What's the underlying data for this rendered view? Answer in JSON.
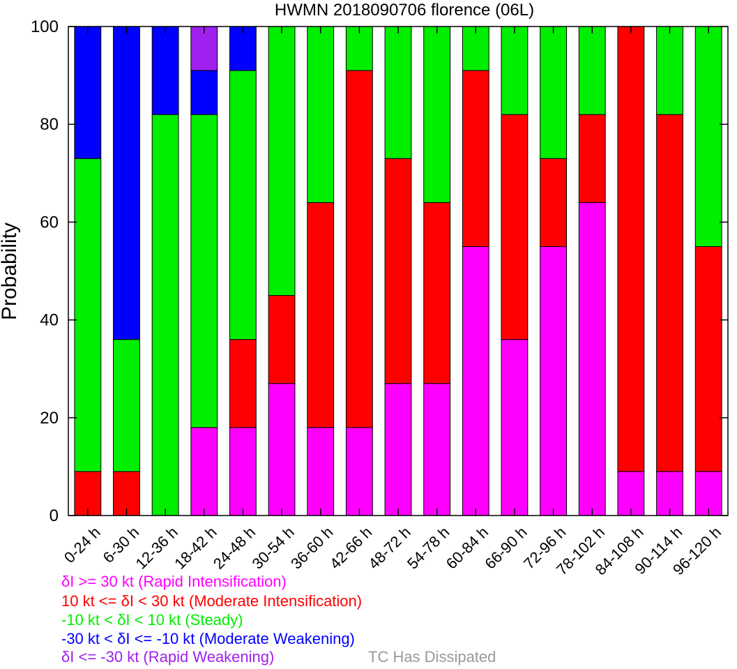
{
  "chart_data": {
    "type": "bar",
    "stacked": true,
    "title": "HWMN 2018090706 florence (06L)",
    "xlabel": "",
    "ylabel": "Probability",
    "ylim": [
      0,
      100
    ],
    "yticks": [
      0,
      20,
      40,
      60,
      80,
      100
    ],
    "grid": false,
    "categories": [
      "0-24 h",
      "6-30 h",
      "12-36 h",
      "18-42 h",
      "24-48 h",
      "30-54 h",
      "36-60 h",
      "42-66 h",
      "48-72 h",
      "54-78 h",
      "60-84 h",
      "66-90 h",
      "72-96 h",
      "78-102 h",
      "84-108 h",
      "90-114 h",
      "96-120 h"
    ],
    "series": [
      {
        "color": "#ff00ff",
        "values": [
          0,
          0,
          0,
          18,
          18,
          27,
          18,
          18,
          27,
          27,
          55,
          36,
          55,
          64,
          9,
          9,
          9
        ]
      },
      {
        "color": "#ff0000",
        "values": [
          9,
          9,
          0,
          0,
          18,
          18,
          46,
          73,
          46,
          37,
          36,
          46,
          18,
          18,
          91,
          73,
          46
        ]
      },
      {
        "color": "#00ee00",
        "values": [
          64,
          27,
          82,
          64,
          55,
          55,
          36,
          9,
          27,
          36,
          9,
          18,
          27,
          18,
          0,
          18,
          45
        ]
      },
      {
        "color": "#0000ff",
        "values": [
          27,
          64,
          18,
          9,
          9,
          0,
          0,
          0,
          0,
          0,
          0,
          0,
          0,
          0,
          0,
          0,
          0
        ]
      },
      {
        "color": "#a020f0",
        "values": [
          0,
          0,
          0,
          9,
          0,
          0,
          0,
          0,
          0,
          0,
          0,
          0,
          0,
          0,
          0,
          0,
          0
        ]
      }
    ]
  },
  "legend": {
    "rapid_intensification": {
      "prefix": "δ",
      "text": "I >= 30 kt (Rapid Intensification)",
      "color": "#ff00ff"
    },
    "moderate_intensification": {
      "prefix": "10 kt <= ",
      "delta": "δ",
      "text": "I < 30 kt (Moderate Intensification)",
      "color": "#ff0000"
    },
    "steady": {
      "prefix": "-10 kt < ",
      "delta": "δ",
      "text": "I < 10 kt (Steady)",
      "color": "#00ee00"
    },
    "moderate_weakening": {
      "prefix": "-30 kt < ",
      "delta": "δ",
      "text": "I <= -10 kt (Moderate Weakening)",
      "color": "#0000ff"
    },
    "rapid_weakening": {
      "prefix": "δ",
      "text": "I <= -30 kt (Rapid Weakening)",
      "color": "#a020f0"
    },
    "dissipated": {
      "text": "TC Has Dissipated",
      "color": "#999999"
    }
  }
}
